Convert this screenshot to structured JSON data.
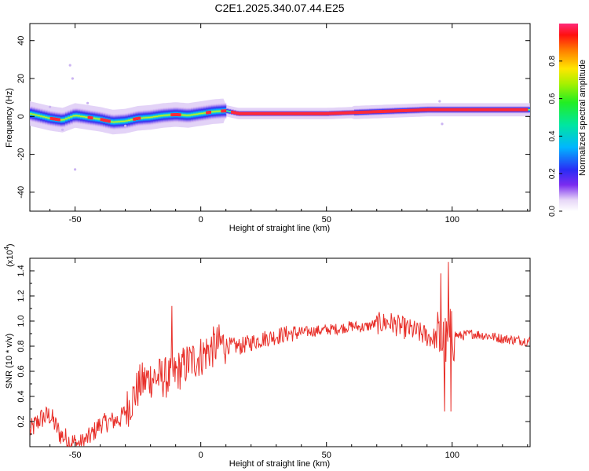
{
  "title": "C2E1.2025.340.07.44.E25",
  "chart_data": [
    {
      "type": "heatmap",
      "xlabel": "Height of straight line (km)",
      "ylabel": "Frequency (Hz)",
      "xlim": [
        -68,
        131
      ],
      "ylim": [
        -50,
        49
      ],
      "xticks": [
        "-50",
        "0",
        "50",
        "100"
      ],
      "xtick_values": [
        -50,
        0,
        50,
        100
      ],
      "yticks": [
        "40",
        "20",
        "0",
        "-20",
        "-40"
      ],
      "ytick_values": [
        40,
        20,
        0,
        -20,
        -40
      ],
      "colorbar": {
        "label": "Normalized spectral amplitude",
        "range": [
          0,
          1
        ],
        "ticks": [
          "0.0",
          "0.2",
          "0.4",
          "0.6",
          "0.8"
        ],
        "tick_values": [
          0.0,
          0.2,
          0.4,
          0.6,
          0.8
        ]
      },
      "ridge": {
        "description_points_x": [
          -68,
          -60,
          -55,
          -50,
          -45,
          -40,
          -35,
          -30,
          -25,
          -20,
          -15,
          -10,
          -5,
          0,
          5,
          10,
          15,
          20,
          30,
          40,
          50,
          60,
          70,
          80,
          90,
          100,
          110,
          120,
          131
        ],
        "center_freq_hz": [
          1.5,
          -1,
          -2,
          0.5,
          -0.5,
          -1.5,
          -3,
          -2.5,
          -1,
          -0.5,
          0.5,
          1,
          0.5,
          1.5,
          2.5,
          3,
          1.5,
          1.5,
          1.5,
          1.5,
          1.5,
          2,
          2.5,
          3,
          3.5,
          3.5,
          3.5,
          3.5,
          3.5
        ]
      }
    },
    {
      "type": "line",
      "xlabel": "Height of straight line (km)",
      "ylabel": "SNR (10 * v/v)",
      "multiplier_label": "(x10",
      "multiplier_exp": "4",
      "multiplier_close": ")",
      "xlim": [
        -68,
        131
      ],
      "ylim": [
        0,
        1.5
      ],
      "xticks": [
        "-50",
        "0",
        "50",
        "100"
      ],
      "xtick_values": [
        -50,
        0,
        50,
        100
      ],
      "yticks": [
        "0.2",
        "0.4",
        "0.6",
        "0.8",
        "1.0",
        "1.2",
        "1.4"
      ],
      "ytick_values": [
        0.2,
        0.4,
        0.6,
        0.8,
        1.0,
        1.2,
        1.4
      ],
      "series": [
        {
          "name": "SNR",
          "color": "#e8302a",
          "x": [
            -68,
            -64,
            -60,
            -56,
            -52,
            -48,
            -44,
            -40,
            -36,
            -32,
            -28,
            -24,
            -20,
            -16,
            -12,
            -8,
            -4,
            0,
            4,
            8,
            12,
            16,
            20,
            25,
            30,
            35,
            40,
            45,
            50,
            55,
            60,
            65,
            70,
            75,
            80,
            85,
            90,
            95,
            98,
            100,
            103,
            108,
            115,
            120,
            125,
            131
          ],
          "values": [
            0.12,
            0.22,
            0.25,
            0.1,
            0.04,
            0.02,
            0.08,
            0.18,
            0.2,
            0.22,
            0.35,
            0.5,
            0.55,
            0.55,
            0.55,
            0.62,
            0.68,
            0.72,
            0.78,
            0.82,
            0.8,
            0.8,
            0.83,
            0.86,
            0.88,
            0.9,
            0.91,
            0.92,
            0.93,
            0.94,
            0.96,
            0.95,
            0.98,
            0.99,
            0.95,
            0.92,
            0.88,
            0.85,
            0.8,
            0.9,
            0.88,
            0.9,
            0.88,
            0.86,
            0.85,
            0.84
          ]
        }
      ],
      "spikes": [
        {
          "x": -11.5,
          "value": 1.12
        },
        {
          "x": 95.5,
          "value": 1.38
        },
        {
          "x": 98.5,
          "value": 1.47
        },
        {
          "x": 97.0,
          "value": 0.28
        },
        {
          "x": 99.5,
          "value": 0.28
        }
      ]
    }
  ]
}
